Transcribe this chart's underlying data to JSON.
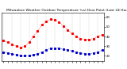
{
  "title": "Milwaukee Weather Outdoor Temperature (vs) Dew Point (Last 24 Hours)",
  "temp_color": "#ff0000",
  "dew_color": "#0000cc",
  "bg_color": "#ffffff",
  "grid_color": "#888888",
  "text_color": "#000000",
  "hours": [
    0,
    1,
    2,
    3,
    4,
    5,
    6,
    7,
    8,
    9,
    10,
    11,
    12,
    13,
    14,
    15,
    16,
    17,
    18,
    19,
    20,
    21,
    22,
    23
  ],
  "temp_values": [
    36,
    34,
    32,
    30,
    29,
    30,
    34,
    40,
    46,
    52,
    56,
    58,
    57,
    55,
    51,
    47,
    43,
    40,
    38,
    37,
    37,
    38,
    40,
    42
  ],
  "dew_values": [
    24,
    23,
    22,
    21,
    20,
    20,
    20,
    21,
    22,
    24,
    26,
    28,
    28,
    28,
    27,
    26,
    25,
    24,
    23,
    22,
    22,
    23,
    24,
    26
  ],
  "ylim_min": 15,
  "ylim_max": 65,
  "y_ticks": [
    20,
    30,
    40,
    50,
    60
  ],
  "y_tick_labels": [
    "20",
    "30",
    "40",
    "50",
    "60"
  ],
  "title_fontsize": 3.2,
  "tick_fontsize": 2.8,
  "marker_size": 1.2,
  "line_width": 0.5,
  "vgrid_every": 2,
  "vgrid_color": "#aaaaaa",
  "vgrid_lw": 0.3
}
